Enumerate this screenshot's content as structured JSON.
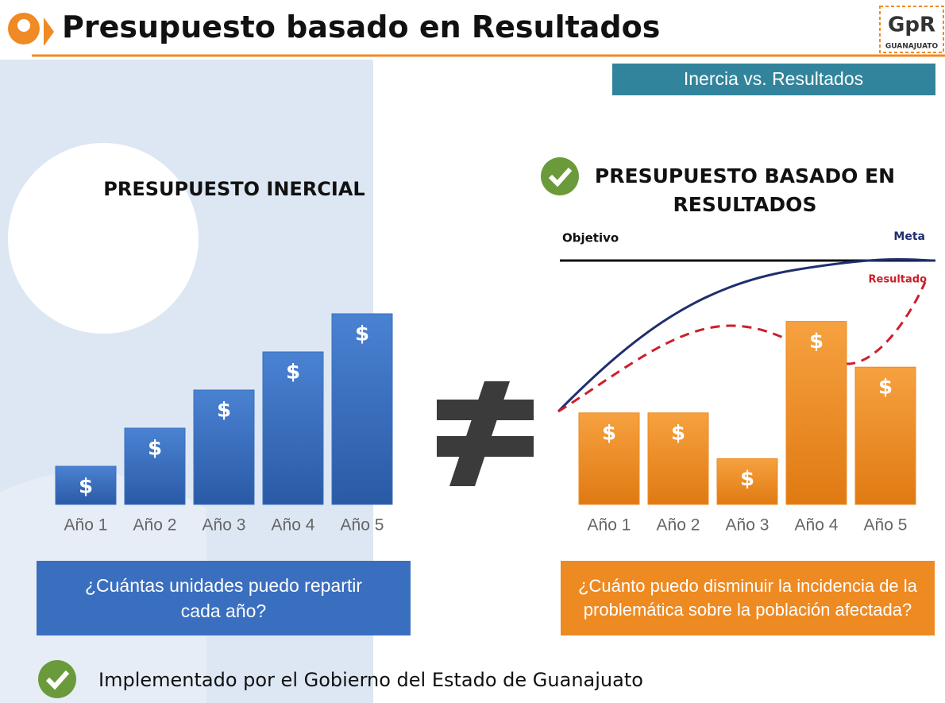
{
  "header": {
    "title": "Presupuesto basado en Resultados",
    "logo_text": "GpR",
    "logo_subtext": "GUANAJUATO",
    "subtitle": "Inercia vs. Resultados"
  },
  "chart_data": [
    {
      "type": "bar",
      "title": "PRESUPUESTO INERCIAL",
      "categories": [
        "Año 1",
        "Año 2",
        "Año 3",
        "Año 4",
        "Año 5"
      ],
      "values": [
        1,
        2,
        3,
        4,
        5
      ],
      "bar_label": "$",
      "color": "#3a6fc0",
      "ylim": [
        0,
        5
      ]
    },
    {
      "type": "bar",
      "title": "PRESUPUESTO BASADO EN RESULTADOS",
      "categories": [
        "Año 1",
        "Año 2",
        "Año 3",
        "Año 4",
        "Año 5"
      ],
      "values": [
        2.4,
        2.4,
        1.2,
        4.8,
        3.6
      ],
      "bar_label": "$",
      "color": "#ee8a22",
      "ylim": [
        0,
        5
      ],
      "annotations": {
        "objective": "Objetivo",
        "goal": "Meta",
        "result": "Resultado"
      }
    }
  ],
  "questions": [
    "¿Cuántas unidades puedo repartir cada año?",
    "¿Cuánto puedo disminuir la incidencia de la problemática sobre la población afectada?"
  ],
  "footer": "Implementado por el Gobierno del Estado de Guanajuato"
}
